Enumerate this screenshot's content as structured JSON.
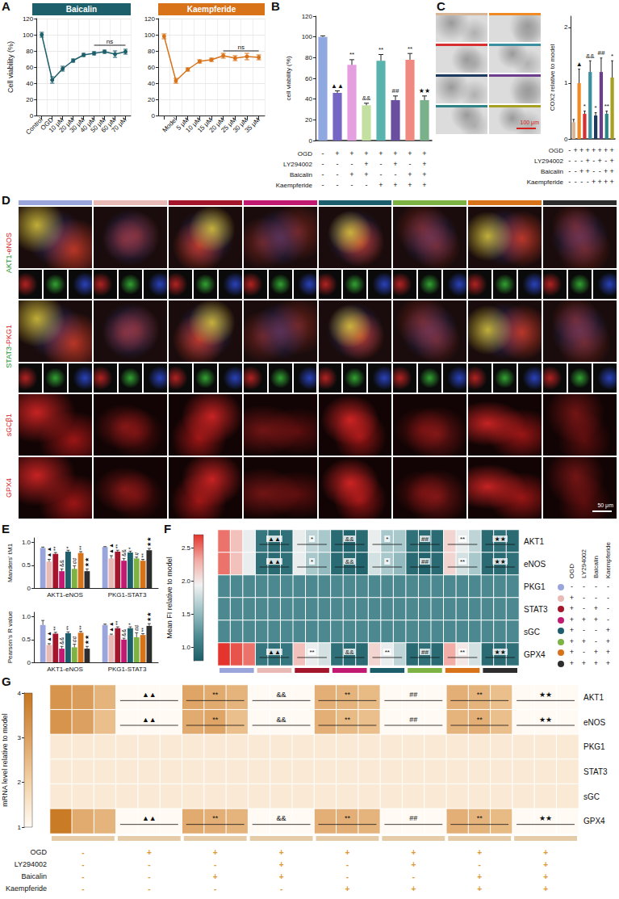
{
  "panel_letters": [
    "A",
    "B",
    "C",
    "D",
    "E",
    "F",
    "G"
  ],
  "groups": {
    "colors": [
      "#9aa5db",
      "#e8b9b5",
      "#a3162b",
      "#c21a73",
      "#1c5e6b",
      "#7cb342",
      "#d9731a",
      "#2d2d2d"
    ]
  },
  "treatments": {
    "rows": [
      "OGD",
      "LY294002",
      "Baicalin",
      "Kaempferide"
    ],
    "signs": [
      [
        "-",
        "+",
        "+",
        "+",
        "+",
        "+",
        "+",
        "+"
      ],
      [
        "-",
        "-",
        "-",
        "+",
        "-",
        "+",
        "-",
        "+"
      ],
      [
        "-",
        "-",
        "+",
        "+",
        "-",
        "-",
        "+",
        "+"
      ],
      [
        "-",
        "-",
        "-",
        "-",
        "+",
        "+",
        "+",
        "+"
      ]
    ]
  },
  "images": {
    "C": {
      "scale_bar": "100 μm"
    },
    "D": {
      "rows": [
        "AKT1-eNOS",
        "STAT3-PKG1",
        "sGCβ1",
        "GPX4"
      ],
      "scale_bar": "50 μm"
    }
  },
  "chart_data": [
    {
      "type": "line",
      "title": "Baicalin",
      "y_label": "Cell viability (%)",
      "categories": [
        "Control",
        "OGD",
        "10 μM",
        "20 μM",
        "30 μM",
        "40 μM",
        "50 μM",
        "60 μM",
        "70 μM"
      ],
      "values": [
        100,
        44,
        58,
        68,
        75,
        77,
        79,
        76,
        79
      ],
      "errors": [
        3,
        4,
        3,
        2,
        2,
        2,
        2,
        4,
        3
      ],
      "color": "#1d5f6b",
      "marker": "circle",
      "ylim": [
        0,
        120
      ],
      "yticks": [
        0,
        20,
        40,
        60,
        80,
        100,
        120
      ],
      "grid": true,
      "annotations": [
        {
          "text": "ns",
          "from": "40 μM",
          "to": "70 μM",
          "y": 87
        }
      ]
    },
    {
      "type": "line",
      "title": "Kaempferide",
      "categories": [
        null,
        "Model",
        "5 μM",
        "10 μM",
        "15 μM",
        "20 μM",
        "25 μM",
        "30 μM",
        "35 μM"
      ],
      "values": [
        98,
        43,
        57,
        67,
        69,
        74,
        71,
        73,
        72
      ],
      "errors": [
        3,
        3,
        2,
        2,
        2,
        3,
        3,
        4,
        3
      ],
      "color": "#d9731a",
      "marker": "circle",
      "ylim": [
        0,
        120
      ],
      "yticks": [
        0,
        20,
        40,
        60,
        80,
        100,
        120
      ],
      "grid": true,
      "annotations": [
        {
          "text": "ns",
          "from": "20 μM",
          "to": "35 μM",
          "y": 80
        }
      ]
    },
    {
      "type": "bar",
      "y_label": "cell viability (%)",
      "values": [
        100,
        46,
        73,
        34,
        77,
        39,
        78,
        39
      ],
      "errors": [
        1,
        2,
        5,
        2,
        6,
        4,
        6,
        4
      ],
      "colors": [
        "#8fa8e0",
        "#7566c4",
        "#e59ee0",
        "#c4e0a0",
        "#58b3ae",
        "#6a4fa0",
        "#f08a80",
        "#7ab08a"
      ],
      "marks": [
        null,
        "▲▲",
        "**",
        "&&",
        "**",
        "##",
        "**",
        "★★"
      ],
      "ylim": [
        0,
        120
      ],
      "yticks": [
        0,
        20,
        40,
        60,
        80,
        100,
        120
      ],
      "tick_labels": "y"
    },
    {
      "type": "bar",
      "y_label": "COX2 relative to model",
      "values": [
        0.3,
        1.0,
        0.45,
        1.2,
        0.42,
        1.2,
        0.45,
        1.1
      ],
      "errors": [
        0.05,
        0.25,
        0.05,
        0.2,
        0.05,
        0.25,
        0.05,
        0.3
      ],
      "colors": [
        "#d8b595",
        "#f08a24",
        "#d63030",
        "#3a8fa0",
        "#1f3a5f",
        "#6b3d8c",
        "#2f8585",
        "#a8a020"
      ],
      "marks": [
        null,
        "▲",
        "*",
        "&&",
        "*",
        "##",
        "**",
        "*"
      ],
      "ylim": [
        0,
        2.2
      ],
      "yticks": [
        0,
        1,
        2
      ],
      "tick_labels": "y"
    },
    {
      "type": "bar",
      "y_label": "Manders' tM1",
      "categories": [
        "AKT1-eNOS",
        "PKG1-STAT3"
      ],
      "ylim": [
        0,
        1.1
      ],
      "yticks": [
        0,
        0.5,
        {
          "value": 1,
          "label": "1.0"
        }
      ],
      "series": [
        {
          "color": "#9aa5db",
          "values": [
            0.88,
            0.9
          ],
          "errors": [
            0.02,
            0.01
          ],
          "marks": [
            null,
            null
          ]
        },
        {
          "color": "#e8b9b5",
          "values": [
            0.58,
            0.65
          ],
          "errors": [
            0.05,
            0.06
          ],
          "marks": [
            "▲▲",
            "▲▲"
          ]
        },
        {
          "color": "#a3162b",
          "values": [
            0.75,
            0.8
          ],
          "errors": [
            0.03,
            0.03
          ],
          "marks": [
            "**",
            "**"
          ]
        },
        {
          "color": "#c21a73",
          "values": [
            0.37,
            0.6
          ],
          "errors": [
            0.05,
            0.05
          ],
          "marks": [
            "&&",
            "&&"
          ]
        },
        {
          "color": "#1c5e6b",
          "values": [
            0.8,
            0.78
          ],
          "errors": [
            0.03,
            0.03
          ],
          "marks": [
            "*",
            "*"
          ]
        },
        {
          "color": "#7cb342",
          "values": [
            0.42,
            0.65
          ],
          "errors": [
            0.07,
            0.03
          ],
          "marks": [
            "##",
            "#"
          ]
        },
        {
          "color": "#d9731a",
          "values": [
            0.77,
            0.6
          ],
          "errors": [
            0.03,
            0.03
          ],
          "marks": [
            "**",
            "**"
          ]
        },
        {
          "color": "#2d2d2d",
          "values": [
            0.37,
            0.83
          ],
          "errors": [
            0.05,
            0.04
          ],
          "marks": [
            "★★",
            "★★"
          ]
        }
      ]
    },
    {
      "type": "bar",
      "y_label": "Pearson's R value",
      "categories": [
        "AKT1-eNOS",
        "PKG1-STAT3"
      ],
      "ylim": [
        0,
        1.1
      ],
      "yticks": [
        0,
        0.5,
        {
          "value": 1,
          "label": "1.0"
        }
      ],
      "series": [
        {
          "color": "#9aa5db",
          "values": [
            0.82,
            0.82
          ],
          "errors": [
            0.1,
            0.02
          ],
          "marks": [
            null,
            null
          ]
        },
        {
          "color": "#e8b9b5",
          "values": [
            0.38,
            0.6
          ],
          "errors": [
            0.03,
            0.02
          ],
          "marks": [
            "▲▲",
            "▲▲"
          ]
        },
        {
          "color": "#a3162b",
          "values": [
            0.63,
            0.75
          ],
          "errors": [
            0.03,
            0.03
          ],
          "marks": [
            "**",
            "**"
          ]
        },
        {
          "color": "#c21a73",
          "values": [
            0.3,
            0.5
          ],
          "errors": [
            0.05,
            0.03
          ],
          "marks": [
            "&&",
            "&&"
          ]
        },
        {
          "color": "#1c5e6b",
          "values": [
            0.64,
            0.75
          ],
          "errors": [
            0.03,
            0.03
          ],
          "marks": [
            "**",
            "*"
          ]
        },
        {
          "color": "#7cb342",
          "values": [
            0.33,
            0.55
          ],
          "errors": [
            0.07,
            0.1
          ],
          "marks": [
            "##",
            "##"
          ]
        },
        {
          "color": "#d9731a",
          "values": [
            0.65,
            0.6
          ],
          "errors": [
            0.03,
            0.03
          ],
          "marks": [
            "**",
            "**"
          ]
        },
        {
          "color": "#2d2d2d",
          "values": [
            0.3,
            0.8
          ],
          "errors": [
            0.05,
            0.05
          ],
          "marks": [
            "★★",
            "★★"
          ]
        }
      ]
    },
    {
      "type": "heatmap",
      "y_label": "Mean FI relative to model",
      "rows": [
        "AKT1",
        "eNOS",
        "PKG1",
        "STAT3",
        "sGC",
        "GPX4"
      ],
      "cells": [
        [
          2.5,
          2.2,
          1.9,
          1.0,
          0.9,
          0.95,
          1.9,
          1.7,
          1.6,
          0.9,
          0.85,
          0.9,
          1.9,
          1.6,
          1.6,
          0.95,
          0.9,
          0.9,
          2.1,
          1.9,
          1.7,
          0.9,
          0.95,
          0.9
        ],
        [
          2.5,
          2.2,
          1.9,
          0.95,
          0.9,
          0.95,
          1.9,
          1.6,
          1.5,
          0.9,
          0.9,
          0.85,
          1.8,
          1.6,
          1.5,
          0.9,
          0.85,
          0.9,
          2.1,
          1.8,
          1.6,
          0.9,
          0.9,
          0.95
        ],
        [
          1.15,
          1.15,
          1.15,
          1.15,
          1.15,
          1.15,
          1.15,
          1.15,
          1.15,
          1.15,
          1.15,
          1.15,
          1.15,
          1.15,
          1.15,
          1.15,
          1.15,
          1.15,
          1.15,
          1.15,
          1.15,
          1.15,
          1.15,
          1.15
        ],
        [
          1.15,
          1.15,
          1.15,
          1.15,
          1.15,
          1.15,
          1.15,
          1.15,
          1.15,
          1.15,
          1.15,
          1.15,
          1.15,
          1.15,
          1.15,
          1.15,
          1.15,
          1.15,
          1.15,
          1.15,
          1.15,
          1.15,
          1.15,
          1.15
        ],
        [
          1.15,
          1.15,
          1.15,
          1.15,
          1.15,
          1.15,
          1.15,
          1.15,
          1.15,
          1.15,
          1.15,
          1.15,
          1.15,
          1.15,
          1.15,
          1.15,
          1.15,
          1.15,
          1.15,
          1.15,
          1.15,
          1.15,
          1.15,
          1.15
        ],
        [
          2.7,
          2.6,
          2.5,
          1.0,
          0.95,
          1.0,
          2.2,
          1.9,
          1.8,
          0.95,
          0.9,
          0.9,
          2.1,
          1.9,
          1.7,
          0.9,
          0.95,
          0.9,
          2.3,
          2.0,
          1.8,
          0.9,
          0.9,
          0.95
        ]
      ],
      "colors": [
        "#1b5e68",
        "#4f8c93",
        "#9fc3c6",
        "#f2f2f2",
        "#f2aaa2",
        "#e3352d"
      ],
      "colorbar": {
        "range": [
          0.8,
          2.7
        ],
        "ticks": [
          {
            "value": 1,
            "label": "1.0"
          },
          1.5,
          {
            "value": 2,
            "label": "2.0"
          },
          2.5
        ]
      },
      "marks": {
        "AKT1": [
          null,
          "▲▲",
          "*",
          "&&",
          "*",
          "##",
          "**",
          "★★"
        ],
        "eNOS": [
          null,
          "▲▲",
          "*",
          "&&",
          "*",
          "##",
          "**",
          "★★"
        ],
        "GPX4": [
          null,
          "▲▲",
          "**",
          "&&",
          "**",
          "##",
          "**",
          "★★"
        ]
      }
    },
    {
      "type": "heatmap",
      "y_label": "mRNA level relative to model",
      "rows": [
        "AKT1",
        "eNOS",
        "PKG1",
        "STAT3",
        "sGC",
        "GPX4"
      ],
      "cells": [
        [
          3.3,
          3.1,
          2.6,
          1.0,
          1.0,
          1.0,
          2.9,
          2.8,
          2.6,
          1.0,
          1.0,
          1.0,
          2.7,
          2.6,
          2.5,
          1.0,
          1.0,
          1.0,
          2.7,
          2.6,
          2.4,
          1.0,
          1.0,
          1.0
        ],
        [
          3.3,
          3.0,
          2.4,
          1.0,
          1.0,
          1.0,
          2.8,
          2.9,
          2.4,
          1.0,
          1.0,
          1.0,
          2.7,
          2.5,
          2.4,
          1.0,
          1.0,
          1.0,
          2.6,
          2.7,
          2.4,
          1.0,
          1.0,
          1.0
        ],
        [
          1.4,
          1.4,
          1.4,
          1.4,
          1.4,
          1.4,
          1.4,
          1.4,
          1.4,
          1.4,
          1.4,
          1.4,
          1.4,
          1.4,
          1.4,
          1.4,
          1.4,
          1.4,
          1.4,
          1.4,
          1.4,
          1.4,
          1.4,
          1.4
        ],
        [
          1.4,
          1.4,
          1.4,
          1.4,
          1.4,
          1.4,
          1.4,
          1.4,
          1.4,
          1.4,
          1.4,
          1.4,
          1.4,
          1.4,
          1.4,
          1.4,
          1.4,
          1.4,
          1.4,
          1.4,
          1.4,
          1.4,
          1.4,
          1.4
        ],
        [
          1.4,
          1.4,
          1.4,
          1.4,
          1.4,
          1.4,
          1.4,
          1.4,
          1.4,
          1.4,
          1.4,
          1.4,
          1.4,
          1.4,
          1.4,
          1.4,
          1.4,
          1.4,
          1.4,
          1.4,
          1.4,
          1.4,
          1.4,
          1.4
        ],
        [
          3.9,
          2.8,
          2.6,
          1.0,
          1.0,
          1.0,
          2.8,
          2.7,
          2.6,
          1.0,
          1.0,
          1.0,
          2.7,
          2.7,
          2.6,
          1.0,
          1.0,
          1.0,
          2.7,
          2.6,
          2.5,
          1.0,
          1.0,
          1.0
        ]
      ],
      "colors": [
        "#fffaf3",
        "#f3d3a8",
        "#dca060",
        "#c8771f"
      ],
      "color": "#e6cba9",
      "colorbar": {
        "range": [
          1,
          4
        ],
        "ticks": [
          1,
          2,
          3,
          4
        ]
      },
      "marks": {
        "AKT1": [
          null,
          "▲▲",
          "**",
          "&&",
          "**",
          "##",
          "**",
          "★★"
        ],
        "eNOS": [
          null,
          "▲▲",
          "**",
          "&&",
          "**",
          "##",
          "**",
          "★★"
        ],
        "GPX4": [
          null,
          "▲▲",
          "**",
          "&&",
          "**",
          "##",
          "**",
          "★★"
        ]
      }
    }
  ]
}
